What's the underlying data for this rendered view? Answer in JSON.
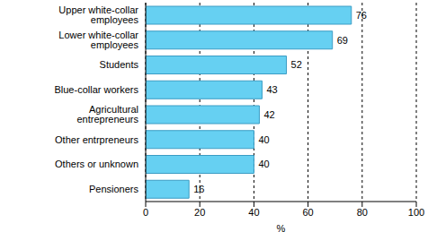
{
  "chart_data": {
    "type": "bar",
    "orientation": "horizontal",
    "categories": [
      "Upper white-collar employees",
      "Lower white-collar employees",
      "Students",
      "Blue-collar workers",
      "Agricultural entrepreneurs",
      "Other entrpreneurs",
      "Others or unknown",
      "Pensioners"
    ],
    "values": [
      76,
      69,
      52,
      43,
      42,
      40,
      40,
      16
    ],
    "color": "#66d0f2",
    "xlim": [
      0,
      100
    ],
    "xticks": [
      0,
      20,
      40,
      60,
      80,
      100
    ],
    "xlabel": "%",
    "grid": true,
    "data_labels": true
  }
}
